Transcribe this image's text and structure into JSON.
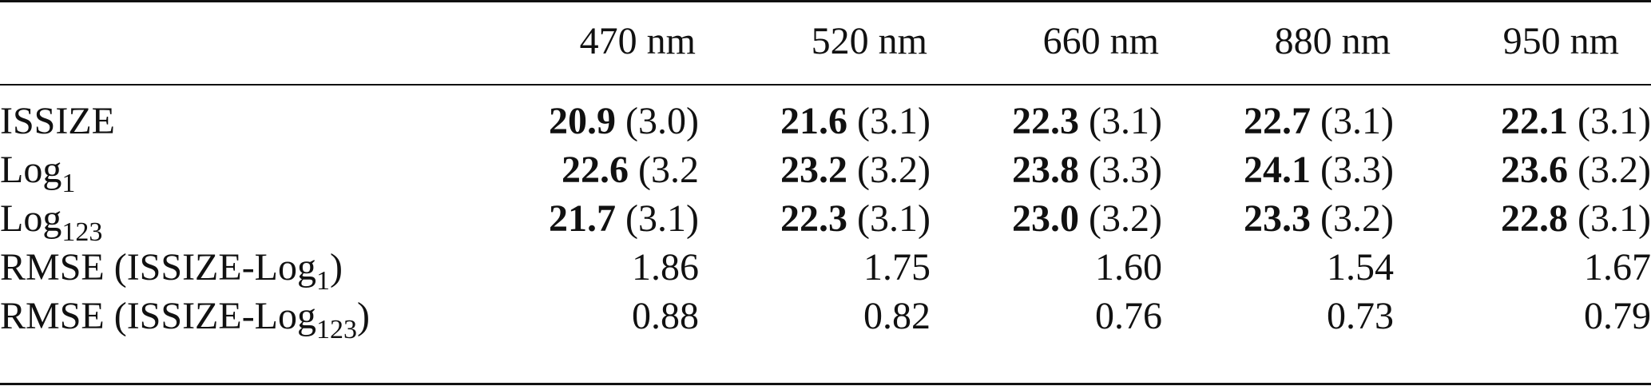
{
  "table": {
    "headers": [
      "470 nm",
      "520 nm",
      "660 nm",
      "880 nm",
      "950 nm"
    ],
    "rows": [
      {
        "label_main": "ISSIZE",
        "label_sub": "",
        "label_tail": "",
        "cells": [
          {
            "bold": "20.9",
            "rest": " (3.0)"
          },
          {
            "bold": "21.6",
            "rest": " (3.1)"
          },
          {
            "bold": "22.3",
            "rest": " (3.1)"
          },
          {
            "bold": "22.7",
            "rest": " (3.1)"
          },
          {
            "bold": "22.1",
            "rest": " (3.1)"
          }
        ]
      },
      {
        "label_main": "Log",
        "label_sub": "1",
        "label_tail": "",
        "cells": [
          {
            "bold": "22.6",
            "rest": " (3.2"
          },
          {
            "bold": "23.2",
            "rest": " (3.2)"
          },
          {
            "bold": "23.8",
            "rest": " (3.3)"
          },
          {
            "bold": "24.1",
            "rest": " (3.3)"
          },
          {
            "bold": "23.6",
            "rest": " (3.2)"
          }
        ]
      },
      {
        "label_main": "Log",
        "label_sub": "123",
        "label_tail": "",
        "cells": [
          {
            "bold": "21.7",
            "rest": " (3.1)"
          },
          {
            "bold": "22.3",
            "rest": " (3.1)"
          },
          {
            "bold": "23.0",
            "rest": " (3.2)"
          },
          {
            "bold": "23.3",
            "rest": " (3.2)"
          },
          {
            "bold": "22.8",
            "rest": " (3.1)"
          }
        ]
      },
      {
        "label_main": "RMSE (ISSIZE-Log",
        "label_sub": "1",
        "label_tail": ")",
        "cells": [
          {
            "bold": "",
            "rest": "1.86"
          },
          {
            "bold": "",
            "rest": "1.75"
          },
          {
            "bold": "",
            "rest": "1.60"
          },
          {
            "bold": "",
            "rest": "1.54"
          },
          {
            "bold": "",
            "rest": "1.67"
          }
        ]
      },
      {
        "label_main": "RMSE (ISSIZE-Log",
        "label_sub": "123",
        "label_tail": ")",
        "cells": [
          {
            "bold": "",
            "rest": "0.88"
          },
          {
            "bold": "",
            "rest": "0.82"
          },
          {
            "bold": "",
            "rest": "0.76"
          },
          {
            "bold": "",
            "rest": "0.73"
          },
          {
            "bold": "",
            "rest": "0.79"
          }
        ]
      }
    ]
  }
}
